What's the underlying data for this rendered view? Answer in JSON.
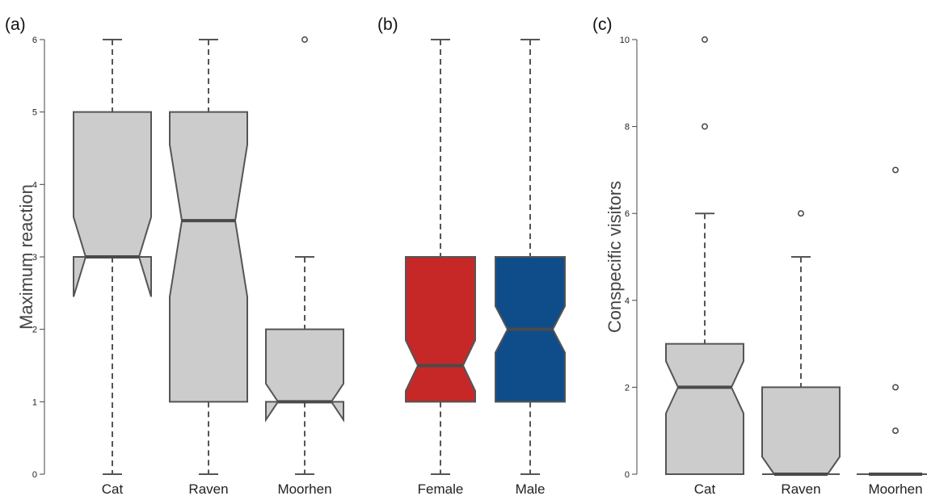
{
  "chart_data": [
    {
      "type": "boxplot",
      "panel_label": "(a)",
      "ylabel": "Maximum reaction",
      "ylim": [
        0,
        6
      ],
      "yticks": [
        0,
        1,
        2,
        3,
        4,
        5,
        6
      ],
      "notched": true,
      "categories": [
        "Cat",
        "Raven",
        "Moorhen"
      ],
      "boxes": [
        {
          "category": "Cat",
          "whisker_low": 0,
          "q1": 3,
          "median": 3,
          "q3": 5,
          "whisker_high": 6,
          "notch_low": 2.45,
          "notch_high": 3.55,
          "outliers": [],
          "color": "#cccccc"
        },
        {
          "category": "Raven",
          "whisker_low": 0,
          "q1": 1,
          "median": 3.5,
          "q3": 5,
          "whisker_high": 6,
          "notch_low": 2.45,
          "notch_high": 4.55,
          "outliers": [],
          "color": "#cccccc"
        },
        {
          "category": "Moorhen",
          "whisker_low": 0,
          "q1": 1,
          "median": 1,
          "q3": 2,
          "whisker_high": 3,
          "notch_low": 0.75,
          "notch_high": 1.25,
          "outliers": [
            6
          ],
          "color": "#cccccc"
        }
      ]
    },
    {
      "type": "boxplot",
      "panel_label": "(b)",
      "ylim": [
        0,
        6
      ],
      "notched": true,
      "categories": [
        "Female",
        "Male"
      ],
      "boxes": [
        {
          "category": "Female",
          "whisker_low": 0,
          "q1": 1,
          "median": 1.5,
          "q3": 3,
          "whisker_high": 6,
          "notch_low": 1.15,
          "notch_high": 1.85,
          "outliers": [],
          "color": "#c62828"
        },
        {
          "category": "Male",
          "whisker_low": 0,
          "q1": 1,
          "median": 2,
          "q3": 3,
          "whisker_high": 6,
          "notch_low": 1.68,
          "notch_high": 2.32,
          "outliers": [],
          "color": "#0f4c8a"
        }
      ]
    },
    {
      "type": "boxplot",
      "panel_label": "(c)",
      "ylabel": "Conspecific visitors",
      "ylim": [
        0,
        10
      ],
      "yticks": [
        0,
        2,
        4,
        6,
        8,
        10
      ],
      "notched": true,
      "categories": [
        "Cat",
        "Raven",
        "Moorhen"
      ],
      "boxes": [
        {
          "category": "Cat",
          "whisker_low": 0,
          "q1": 0,
          "median": 2,
          "q3": 3,
          "whisker_high": 6,
          "notch_low": 1.4,
          "notch_high": 2.6,
          "outliers": [
            8,
            10
          ],
          "color": "#cccccc"
        },
        {
          "category": "Raven",
          "whisker_low": 0,
          "q1": 0,
          "median": 0,
          "q3": 2,
          "whisker_high": 5,
          "notch_low": 0,
          "notch_high": 0.4,
          "outliers": [
            6
          ],
          "color": "#cccccc"
        },
        {
          "category": "Moorhen",
          "whisker_low": 0,
          "q1": 0,
          "median": 0,
          "q3": 0,
          "whisker_high": 0,
          "notch_low": 0,
          "notch_high": 0,
          "outliers": [
            1,
            2,
            7
          ],
          "color": "#cccccc"
        }
      ]
    }
  ]
}
